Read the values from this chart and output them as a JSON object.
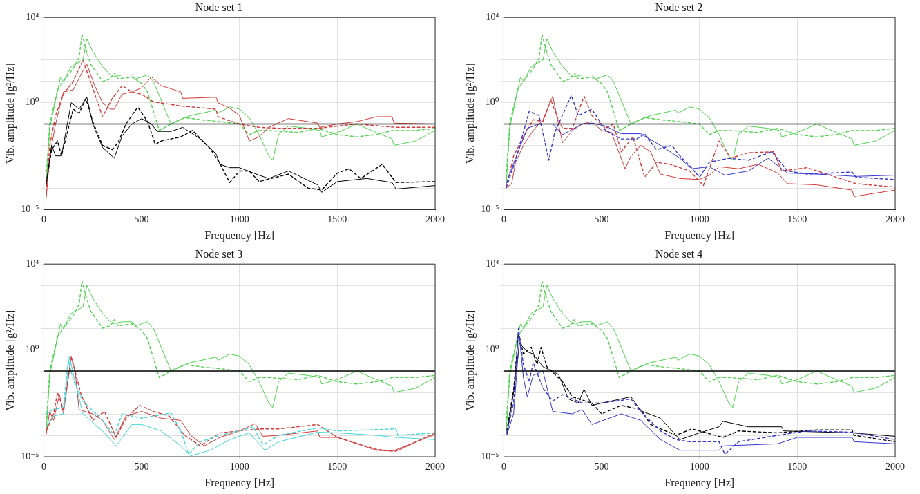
{
  "chart_data": [
    {
      "type": "line",
      "title": "Node set 1",
      "xlabel": "Frequency [Hz]",
      "ylabel": "Vib. amplitude [g²/Hz]",
      "xlim": [
        0,
        2000
      ],
      "xticks": [
        0,
        500,
        1000,
        1500,
        2000
      ],
      "ylim": [
        1e-05,
        10000
      ],
      "yticks": [
        {
          "value": 1e-05,
          "label": "10⁻⁵"
        },
        {
          "value": 0.0001,
          "label": null
        },
        {
          "value": 0.001,
          "label": null
        },
        {
          "value": 0.01,
          "label": null
        },
        {
          "value": 0.1,
          "label": null
        },
        {
          "value": 1,
          "label": "10⁰"
        },
        {
          "value": 10,
          "label": null
        },
        {
          "value": 100,
          "label": null
        },
        {
          "value": 1000,
          "label": null
        },
        {
          "value": 10000,
          "label": "10⁴"
        }
      ],
      "log": "y",
      "grid": true,
      "ref_lines": [
        {
          "axis": "y",
          "value": 0.1,
          "color": "#000000"
        }
      ],
      "series": [
        {
          "color": "#4fd24f",
          "line_style": "solid",
          "x": [
            12,
            30,
            60,
            85,
            100,
            140,
            160,
            200,
            220,
            250,
            300,
            350,
            400,
            450,
            470,
            530,
            560,
            600,
            650,
            680,
            750,
            880,
            890,
            950,
            1000,
            1050,
            1100,
            1150,
            1170,
            1200,
            1250,
            1350,
            1410,
            1420,
            1500,
            1600,
            1700,
            1780,
            1790,
            1900,
            2000
          ],
          "values": [
            0.00013,
            0.063,
            1.3,
            16,
            10,
            50,
            63,
            100,
            1000,
            250,
            50,
            16,
            20,
            20,
            13,
            20,
            10,
            1.3,
            0.1,
            0.14,
            0.25,
            0.45,
            0.32,
            0.63,
            0.5,
            0.2,
            0.032,
            0.0032,
            0.002,
            0.032,
            0.08,
            0.063,
            0.05,
            0.025,
            0.04,
            0.1,
            0.04,
            0.02,
            0.01,
            0.016,
            0.05
          ]
        },
        {
          "color": "#4fd24f",
          "line_style": "dashed",
          "x": [
            12,
            30,
            70,
            100,
            150,
            180,
            195,
            215,
            240,
            300,
            340,
            360,
            380,
            450,
            500,
            530,
            560,
            590,
            650,
            720,
            800,
            900,
            1000,
            1050,
            1100,
            1150,
            1300,
            1400,
            1500,
            1600,
            1700,
            1780,
            1900,
            2000
          ],
          "values": [
            0.00032,
            0.1,
            4,
            10,
            40,
            126,
            1600,
            320,
            63,
            10,
            13,
            25,
            13,
            16,
            8,
            3.2,
            0.4,
            0.05,
            0.1,
            0.2,
            0.16,
            0.13,
            0.1,
            0.032,
            0.05,
            0.05,
            0.04,
            0.063,
            0.032,
            0.025,
            0.032,
            0.05,
            0.05,
            0.063
          ]
        },
        {
          "color": "#d43a3a",
          "line_style": "solid",
          "x": [
            12,
            30,
            60,
            100,
            150,
            200,
            220,
            260,
            300,
            340,
            360,
            400,
            450,
            500,
            550,
            600,
            700,
            710,
            880,
            890,
            950,
            1000,
            1050,
            1100,
            1150,
            1250,
            1400,
            1410,
            1500,
            1600,
            1700,
            1780,
            1790,
            2000
          ],
          "values": [
            3.2e-05,
            0.0032,
            0.1,
            3.2,
            4,
            32,
            63,
            6.3,
            1,
            0.5,
            0.5,
            2.5,
            3.2,
            5,
            16,
            6.3,
            3.2,
            1.6,
            1.8,
            1,
            0.56,
            0.25,
            0.016,
            0.025,
            0.07,
            0.18,
            0.11,
            0.07,
            0.1,
            0.13,
            0.22,
            0.22,
            0.11,
            0.1
          ]
        },
        {
          "color": "#d43a3a",
          "line_style": "dashed",
          "x": [
            12,
            30,
            60,
            100,
            150,
            200,
            240,
            300,
            350,
            400,
            450,
            500,
            560,
            700,
            880,
            890,
            1000,
            1100,
            1200,
            1400,
            1600,
            1800,
            2000
          ],
          "values": [
            6.3e-05,
            0.01,
            0.25,
            2.5,
            10,
            100,
            9,
            0.22,
            1.6,
            6.3,
            3.2,
            2.5,
            1.1,
            0.7,
            0.5,
            0.22,
            0.1,
            0.07,
            0.063,
            0.063,
            0.1,
            0.07,
            0.07
          ]
        },
        {
          "color": "#000000",
          "line_style": "solid",
          "x": [
            12,
            40,
            60,
            90,
            140,
            180,
            220,
            250,
            300,
            360,
            400,
            450,
            500,
            550,
            580,
            650,
            710,
            800,
            880,
            900,
            950,
            1000,
            1100,
            1150,
            1250,
            1400,
            1420,
            1500,
            1650,
            1780,
            1800,
            2000
          ],
          "values": [
            0.00016,
            0.01,
            0.0032,
            0.0032,
            1,
            0.5,
            1.8,
            0.1,
            0.008,
            0.0025,
            0.028,
            0.1,
            0.18,
            0.1,
            0.045,
            0.045,
            0.07,
            0.02,
            0.004,
            0.0013,
            0.0009,
            0.0009,
            0.0004,
            0.00028,
            0.00063,
            0.00014,
            6.3e-05,
            0.0002,
            0.00028,
            0.00018,
            9e-05,
            0.00013
          ]
        },
        {
          "color": "#000000",
          "line_style": "dashed",
          "x": [
            12,
            40,
            70,
            90,
            150,
            180,
            215,
            250,
            300,
            350,
            380,
            420,
            480,
            530,
            570,
            600,
            700,
            760,
            850,
            900,
            950,
            1000,
            1050,
            1100,
            1250,
            1350,
            1420,
            1500,
            1560,
            1620,
            1730,
            1800,
            2000
          ],
          "values": [
            0.00016,
            0.0063,
            0.016,
            0.0032,
            0.5,
            0.32,
            1.6,
            0.13,
            0.01,
            0.0063,
            0.014,
            0.1,
            0.63,
            0.13,
            0.011,
            0.016,
            0.025,
            0.05,
            0.007,
            0.0014,
            0.00018,
            0.00063,
            0.00063,
            0.0002,
            0.00045,
            0.0001,
            8e-05,
            0.0005,
            0.0008,
            0.00028,
            0.0013,
            0.00018,
            0.0002
          ]
        }
      ]
    },
    {
      "type": "line",
      "title": "Node set 2",
      "xlabel": "Frequency [Hz]",
      "ylabel": "Vib. amplitude [g²/Hz]",
      "xlim": [
        0,
        2000
      ],
      "xticks": [
        0,
        500,
        1000,
        1500,
        2000
      ],
      "ylim": [
        1e-05,
        10000
      ],
      "yticks": [
        {
          "value": 1e-05,
          "label": "10⁻⁵"
        },
        {
          "value": 0.0001,
          "label": null
        },
        {
          "value": 0.001,
          "label": null
        },
        {
          "value": 0.01,
          "label": null
        },
        {
          "value": 0.1,
          "label": null
        },
        {
          "value": 1,
          "label": "10⁰"
        },
        {
          "value": 10,
          "label": null
        },
        {
          "value": 100,
          "label": null
        },
        {
          "value": 1000,
          "label": null
        },
        {
          "value": 10000,
          "label": "10⁴"
        }
      ],
      "log": "y",
      "grid": true,
      "ref_lines": [
        {
          "axis": "y",
          "value": 0.1,
          "color": "#000000"
        }
      ],
      "series": [
        {
          "color": "#4fd24f",
          "line_style": "solid",
          "x": [
            12,
            30,
            60,
            85,
            100,
            140,
            160,
            200,
            220,
            250,
            300,
            350,
            400,
            450,
            470,
            530,
            560,
            600,
            650,
            680,
            750,
            880,
            890,
            950,
            1000,
            1050,
            1100,
            1150,
            1170,
            1200,
            1250,
            1350,
            1410,
            1420,
            1500,
            1600,
            1700,
            1780,
            1790,
            1900,
            2000
          ],
          "values": [
            0.00013,
            0.063,
            1.3,
            16,
            10,
            50,
            63,
            100,
            1000,
            250,
            50,
            16,
            20,
            20,
            13,
            20,
            10,
            1.3,
            0.1,
            0.14,
            0.25,
            0.45,
            0.32,
            0.63,
            0.5,
            0.2,
            0.032,
            0.0032,
            0.002,
            0.032,
            0.08,
            0.063,
            0.05,
            0.025,
            0.04,
            0.1,
            0.04,
            0.02,
            0.01,
            0.016,
            0.05
          ]
        },
        {
          "color": "#4fd24f",
          "line_style": "dashed",
          "x": [
            12,
            30,
            70,
            100,
            150,
            180,
            195,
            215,
            240,
            300,
            340,
            360,
            380,
            450,
            500,
            530,
            560,
            590,
            650,
            720,
            800,
            900,
            1000,
            1050,
            1100,
            1150,
            1300,
            1400,
            1500,
            1600,
            1700,
            1780,
            1900,
            2000
          ],
          "values": [
            0.00032,
            0.1,
            4,
            10,
            40,
            126,
            1600,
            320,
            63,
            10,
            13,
            25,
            13,
            16,
            8,
            3.2,
            0.4,
            0.05,
            0.1,
            0.2,
            0.16,
            0.13,
            0.1,
            0.032,
            0.05,
            0.05,
            0.04,
            0.063,
            0.032,
            0.025,
            0.032,
            0.05,
            0.05,
            0.063
          ]
        },
        {
          "color": "#d43a3a",
          "line_style": "solid",
          "x": [
            12,
            40,
            60,
            100,
            150,
            200,
            250,
            300,
            350,
            400,
            450,
            500,
            550,
            620,
            650,
            700,
            750,
            800,
            900,
            1000,
            1050,
            1100,
            1200,
            1300,
            1400,
            1450,
            1600,
            1780,
            1790,
            2000
          ],
          "values": [
            0.0001,
            0.00016,
            0.0016,
            0.01,
            0.05,
            0.16,
            2,
            0.013,
            0.05,
            0.1,
            0.13,
            0.05,
            0.04,
            0.0008,
            0.0032,
            0.01,
            0.005,
            0.00045,
            0.00028,
            0.00025,
            0.0004,
            0.001,
            0.0008,
            0.0013,
            0.0005,
            0.00016,
            0.00014,
            8e-05,
            4e-05,
            8e-05
          ]
        },
        {
          "color": "#d43a3a",
          "line_style": "dashed",
          "x": [
            12,
            50,
            100,
            150,
            200,
            240,
            270,
            300,
            350,
            410,
            450,
            520,
            560,
            600,
            660,
            720,
            780,
            850,
            950,
            1020,
            1100,
            1160,
            1250,
            1380,
            1420,
            1550,
            1700,
            1800,
            2000
          ],
          "values": [
            0.0001,
            0.0032,
            0.025,
            0.16,
            0.13,
            1.4,
            0.25,
            0.063,
            0.063,
            2,
            0.25,
            0.063,
            0.1,
            0.005,
            0.025,
            0.00032,
            0.0016,
            0.0013,
            0.00063,
            0.00013,
            0.016,
            0.0025,
            0.0045,
            0.005,
            0.00063,
            0.0009,
            0.00032,
            0.00016,
            0.00011
          ]
        },
        {
          "color": "#3535d0",
          "line_style": "solid",
          "x": [
            12,
            60,
            120,
            180,
            250,
            300,
            400,
            450,
            520,
            600,
            700,
            800,
            900,
            960,
            1050,
            1130,
            1250,
            1350,
            1450,
            1600,
            1800,
            2000
          ],
          "values": [
            0.00016,
            0.0025,
            0.063,
            0.1,
            0.1,
            0.032,
            0.1,
            0.11,
            0.08,
            0.035,
            0.035,
            0.01,
            0.0025,
            0.0008,
            0.001,
            0.0004,
            0.00063,
            0.0025,
            0.0005,
            0.00045,
            0.00035,
            0.0004
          ]
        },
        {
          "color": "#3535d0",
          "line_style": "dashed",
          "x": [
            12,
            60,
            130,
            180,
            230,
            260,
            345,
            380,
            450,
            520,
            600,
            680,
            720,
            780,
            860,
            890,
            950,
            1000,
            1050,
            1150,
            1250,
            1370,
            1450,
            1550,
            1780,
            1800,
            2000
          ],
          "values": [
            0.0001,
            0.002,
            0.4,
            0.25,
            0.002,
            0.04,
            2.2,
            0.25,
            0.5,
            0.05,
            0.02,
            0.02,
            0.035,
            0.0063,
            0.01,
            0.004,
            0.0011,
            0.00032,
            0.0016,
            0.0025,
            0.002,
            0.005,
            0.00063,
            0.00045,
            0.00056,
            0.00032,
            0.00025
          ]
        }
      ]
    },
    {
      "type": "line",
      "title": "Node set 3",
      "xlabel": "Frequency [Hz]",
      "ylabel": "Vib. amplitude [g²/Hz]",
      "xlim": [
        0,
        2000
      ],
      "xticks": [
        0,
        500,
        1000,
        1500,
        2000
      ],
      "ylim": [
        1e-05,
        10000
      ],
      "yticks": [
        {
          "value": 1e-05,
          "label": "10⁻⁵"
        },
        {
          "value": 0.0001,
          "label": null
        },
        {
          "value": 0.001,
          "label": null
        },
        {
          "value": 0.01,
          "label": null
        },
        {
          "value": 0.1,
          "label": null
        },
        {
          "value": 1,
          "label": "10⁰"
        },
        {
          "value": 10,
          "label": null
        },
        {
          "value": 100,
          "label": null
        },
        {
          "value": 1000,
          "label": null
        },
        {
          "value": 10000,
          "label": "10⁴"
        }
      ],
      "log": "y",
      "grid": true,
      "ref_lines": [
        {
          "axis": "y",
          "value": 0.1,
          "color": "#000000"
        }
      ],
      "series": [
        {
          "color": "#4fd24f",
          "line_style": "solid",
          "x": [
            12,
            30,
            60,
            85,
            100,
            140,
            160,
            200,
            220,
            250,
            300,
            350,
            400,
            450,
            470,
            530,
            560,
            600,
            650,
            680,
            750,
            880,
            890,
            950,
            1000,
            1050,
            1100,
            1150,
            1170,
            1200,
            1250,
            1350,
            1410,
            1420,
            1500,
            1600,
            1700,
            1780,
            1790,
            1900,
            2000
          ],
          "values": [
            0.00013,
            0.063,
            1.3,
            16,
            10,
            50,
            63,
            100,
            1000,
            250,
            50,
            16,
            20,
            20,
            13,
            20,
            10,
            1.3,
            0.1,
            0.14,
            0.25,
            0.45,
            0.32,
            0.63,
            0.5,
            0.2,
            0.032,
            0.0032,
            0.002,
            0.032,
            0.08,
            0.063,
            0.05,
            0.025,
            0.04,
            0.1,
            0.04,
            0.02,
            0.01,
            0.016,
            0.05
          ]
        },
        {
          "color": "#4fd24f",
          "line_style": "dashed",
          "x": [
            12,
            30,
            70,
            100,
            150,
            180,
            195,
            215,
            240,
            300,
            340,
            360,
            380,
            450,
            500,
            530,
            560,
            590,
            650,
            720,
            800,
            900,
            1000,
            1050,
            1100,
            1150,
            1300,
            1400,
            1500,
            1600,
            1700,
            1780,
            1900,
            2000
          ],
          "values": [
            0.00032,
            0.1,
            4,
            10,
            40,
            126,
            1600,
            320,
            63,
            10,
            13,
            25,
            13,
            16,
            8,
            3.2,
            0.4,
            0.05,
            0.1,
            0.2,
            0.16,
            0.13,
            0.1,
            0.032,
            0.05,
            0.05,
            0.04,
            0.063,
            0.032,
            0.025,
            0.032,
            0.05,
            0.05,
            0.063
          ]
        },
        {
          "color": "#d43a3a",
          "line_style": "solid",
          "x": [
            12,
            30,
            50,
            80,
            100,
            140,
            160,
            180,
            250,
            300,
            360,
            420,
            500,
            600,
            700,
            750,
            820,
            900,
            1000,
            1080,
            1120,
            1200,
            1400,
            1410,
            1500,
            1700,
            1780,
            2000
          ],
          "values": [
            0.00011,
            0.0013,
            0.0005,
            0.008,
            0.001,
            0.5,
            0.1,
            0.0016,
            0.001,
            0.0005,
            6.3e-05,
            0.0008,
            0.0013,
            0.00063,
            0.0005,
            0.0001,
            3.2e-05,
            8e-05,
            0.00016,
            0.00035,
            9e-05,
            0.0001,
            0.00016,
            8e-05,
            8e-05,
            2e-05,
            1.8e-05,
            0.00011
          ]
        },
        {
          "color": "#d43a3a",
          "line_style": "dashed",
          "x": [
            12,
            50,
            70,
            100,
            140,
            160,
            190,
            250,
            310,
            370,
            420,
            490,
            560,
            640,
            720,
            800,
            900,
            1000,
            1100,
            1200,
            1400,
            1500,
            1700,
            1800,
            2000
          ],
          "values": [
            0.00016,
            0.001,
            0.01,
            0.0016,
            0.4,
            0.1,
            0.008,
            0.0005,
            0.0013,
            8e-05,
            0.00063,
            0.0025,
            0.0013,
            0.0008,
            0.0001,
            3.2e-05,
            0.00013,
            0.00016,
            0.0002,
            0.0002,
            0.00032,
            8e-05,
            2.2e-05,
            1.8e-05,
            0.00013
          ]
        },
        {
          "color": "#3fd8d8",
          "line_style": "solid",
          "x": [
            12,
            50,
            100,
            130,
            160,
            200,
            300,
            370,
            450,
            500,
            600,
            700,
            750,
            850,
            950,
            1050,
            1130,
            1200,
            1400,
            1500,
            1700,
            1800,
            2000
          ],
          "values": [
            0.00025,
            0.0008,
            0.001,
            0.5,
            0.032,
            0.001,
            0.00016,
            3.2e-05,
            0.00032,
            0.00032,
            0.00016,
            3.2e-05,
            1.1e-05,
            2e-05,
            6.3e-05,
            0.00013,
            2e-05,
            5e-05,
            0.00014,
            0.00013,
            0.0001,
            8e-05,
            6.3e-05
          ]
        },
        {
          "color": "#3fd8d8",
          "line_style": "dashed",
          "x": [
            12,
            50,
            100,
            125,
            150,
            200,
            300,
            360,
            400,
            500,
            650,
            700,
            740,
            800,
            900,
            1000,
            1070,
            1120,
            1200,
            1400,
            1500,
            1800,
            1810,
            2000
          ],
          "values": [
            0.001,
            0.0016,
            0.002,
            0.32,
            0.04,
            0.004,
            0.0005,
            0.0001,
            0.001,
            0.00063,
            0.0011,
            0.00016,
            1.3e-05,
            5e-05,
            0.0001,
            0.00016,
            0.00025,
            3.5e-05,
            0.0001,
            0.00022,
            0.00016,
            0.0002,
            0.0001,
            0.00013
          ]
        }
      ]
    },
    {
      "type": "line",
      "title": "Node set 4",
      "xlabel": "Frequency [Hz]",
      "ylabel": "Vib. amplitude [g²/Hz]",
      "xlim": [
        0,
        2000
      ],
      "xticks": [
        0,
        500,
        1000,
        1500,
        2000
      ],
      "ylim": [
        1e-05,
        10000
      ],
      "yticks": [
        {
          "value": 1e-05,
          "label": "10⁻⁵"
        },
        {
          "value": 0.0001,
          "label": null
        },
        {
          "value": 0.001,
          "label": null
        },
        {
          "value": 0.01,
          "label": null
        },
        {
          "value": 0.1,
          "label": null
        },
        {
          "value": 1,
          "label": "10⁰"
        },
        {
          "value": 10,
          "label": null
        },
        {
          "value": 100,
          "label": null
        },
        {
          "value": 1000,
          "label": null
        },
        {
          "value": 10000,
          "label": "10⁴"
        }
      ],
      "log": "y",
      "grid": true,
      "ref_lines": [
        {
          "axis": "y",
          "value": 0.1,
          "color": "#000000"
        }
      ],
      "series": [
        {
          "color": "#4fd24f",
          "line_style": "solid",
          "x": [
            12,
            30,
            60,
            85,
            100,
            140,
            160,
            200,
            220,
            250,
            300,
            350,
            400,
            450,
            470,
            530,
            560,
            600,
            650,
            680,
            750,
            880,
            890,
            950,
            1000,
            1050,
            1100,
            1150,
            1170,
            1200,
            1250,
            1350,
            1410,
            1420,
            1500,
            1600,
            1700,
            1780,
            1790,
            1900,
            2000
          ],
          "values": [
            0.00013,
            0.063,
            1.3,
            16,
            10,
            50,
            63,
            100,
            1000,
            250,
            50,
            16,
            20,
            20,
            13,
            20,
            10,
            1.3,
            0.1,
            0.14,
            0.25,
            0.45,
            0.32,
            0.63,
            0.5,
            0.2,
            0.032,
            0.0032,
            0.002,
            0.032,
            0.08,
            0.063,
            0.05,
            0.025,
            0.04,
            0.1,
            0.04,
            0.02,
            0.01,
            0.016,
            0.05
          ]
        },
        {
          "color": "#4fd24f",
          "line_style": "dashed",
          "x": [
            12,
            30,
            70,
            100,
            150,
            180,
            195,
            215,
            240,
            300,
            340,
            360,
            380,
            450,
            500,
            530,
            560,
            590,
            650,
            720,
            800,
            900,
            1000,
            1050,
            1100,
            1150,
            1300,
            1400,
            1500,
            1600,
            1700,
            1780,
            1900,
            2000
          ],
          "values": [
            0.00032,
            0.1,
            4,
            10,
            40,
            126,
            1600,
            320,
            63,
            10,
            13,
            25,
            13,
            16,
            8,
            3.2,
            0.4,
            0.05,
            0.1,
            0.2,
            0.16,
            0.13,
            0.1,
            0.032,
            0.05,
            0.05,
            0.04,
            0.063,
            0.032,
            0.025,
            0.032,
            0.05,
            0.05,
            0.063
          ]
        },
        {
          "color": "#000000",
          "line_style": "solid",
          "x": [
            15,
            50,
            80,
            120,
            150,
            200,
            280,
            330,
            380,
            410,
            450,
            500,
            650,
            700,
            800,
            880,
            900,
            1000,
            1100,
            1120,
            1250,
            1420,
            1430,
            1780,
            2000
          ],
          "values": [
            0.0001,
            0.01,
            2,
            0.8,
            0.63,
            0.16,
            0.07,
            0.005,
            0.0032,
            0.014,
            0.0025,
            0.0032,
            0.0063,
            0.0014,
            0.00063,
            0.0001,
            6.3e-05,
            0.00013,
            0.00025,
            0.00045,
            0.00025,
            0.00025,
            0.00016,
            0.00013,
            9e-05
          ]
        },
        {
          "color": "#000000",
          "line_style": "dashed",
          "x": [
            15,
            50,
            75,
            100,
            140,
            170,
            190,
            220,
            300,
            350,
            450,
            500,
            600,
            700,
            750,
            880,
            960,
            1120,
            1200,
            1400,
            1600,
            1780,
            1790,
            2000
          ],
          "values": [
            0.00016,
            0.013,
            6.3,
            0.63,
            1.3,
            0.2,
            1.3,
            0.16,
            0.032,
            0.0063,
            0.0032,
            0.001,
            0.0025,
            0.0016,
            0.00032,
            0.0001,
            0.0002,
            8e-05,
            0.00016,
            0.00013,
            0.00018,
            0.00018,
            0.0001,
            5e-05
          ]
        },
        {
          "color": "#3535d0",
          "line_style": "solid",
          "x": [
            15,
            50,
            80,
            100,
            120,
            150,
            200,
            250,
            350,
            400,
            450,
            600,
            700,
            800,
            900,
            1100,
            1120,
            1400,
            1500,
            1780,
            1790,
            2000
          ],
          "values": [
            0.0001,
            0.001,
            4,
            0.05,
            0.0063,
            0.063,
            0.1,
            0.0013,
            0.001,
            0.0016,
            0.00032,
            0.001,
            0.0005,
            6.3e-05,
            2e-05,
            2e-05,
            3.2e-05,
            4e-05,
            8e-05,
            8e-05,
            5e-05,
            4e-05
          ]
        },
        {
          "color": "#3535d0",
          "line_style": "dashed",
          "x": [
            15,
            50,
            75,
            100,
            130,
            150,
            200,
            250,
            300,
            400,
            500,
            650,
            700,
            800,
            880,
            950,
            1100,
            1130,
            1200,
            1400,
            1550,
            1780,
            2000
          ],
          "values": [
            0.00013,
            0.0032,
            10,
            0.2,
            0.032,
            0.25,
            0.016,
            0.004,
            0.008,
            0.0032,
            0.0032,
            0.005,
            0.0013,
            0.00016,
            6.3e-05,
            5e-05,
            5e-05,
            1.3e-05,
            5e-05,
            0.0001,
            0.00016,
            0.00014,
            6.3e-05
          ]
        }
      ]
    }
  ]
}
